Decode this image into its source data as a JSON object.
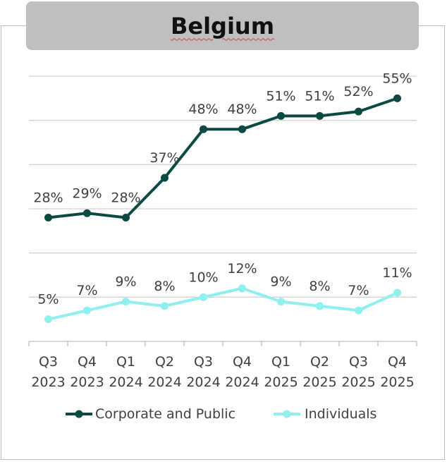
{
  "chart_data": {
    "type": "line",
    "title": "Belgium",
    "categories": [
      [
        "Q3",
        "2023"
      ],
      [
        "Q4",
        "2023"
      ],
      [
        "Q1",
        "2024"
      ],
      [
        "Q2",
        "2024"
      ],
      [
        "Q3",
        "2024"
      ],
      [
        "Q4",
        "2024"
      ],
      [
        "Q1",
        "2025"
      ],
      [
        "Q2",
        "2025"
      ],
      [
        "Q3",
        "2025"
      ],
      [
        "Q4",
        "2025"
      ]
    ],
    "series": [
      {
        "name": "Corporate and Public",
        "color": "#0b4a43",
        "values": [
          28,
          29,
          28,
          37,
          48,
          48,
          51,
          51,
          52,
          55
        ],
        "labels": [
          "28%",
          "29%",
          "28%",
          "37%",
          "48%",
          "48%",
          "51%",
          "51%",
          "52%",
          "55%"
        ]
      },
      {
        "name": "Individuals",
        "color": "#8ef0ef",
        "values": [
          5,
          7,
          9,
          8,
          10,
          12,
          9,
          8,
          7,
          11
        ],
        "labels": [
          "5%",
          "7%",
          "9%",
          "8%",
          "10%",
          "12%",
          "9%",
          "8%",
          "7%",
          "11%"
        ]
      }
    ],
    "ylim": [
      0,
      60
    ],
    "grid": true,
    "legend": "bottom"
  }
}
